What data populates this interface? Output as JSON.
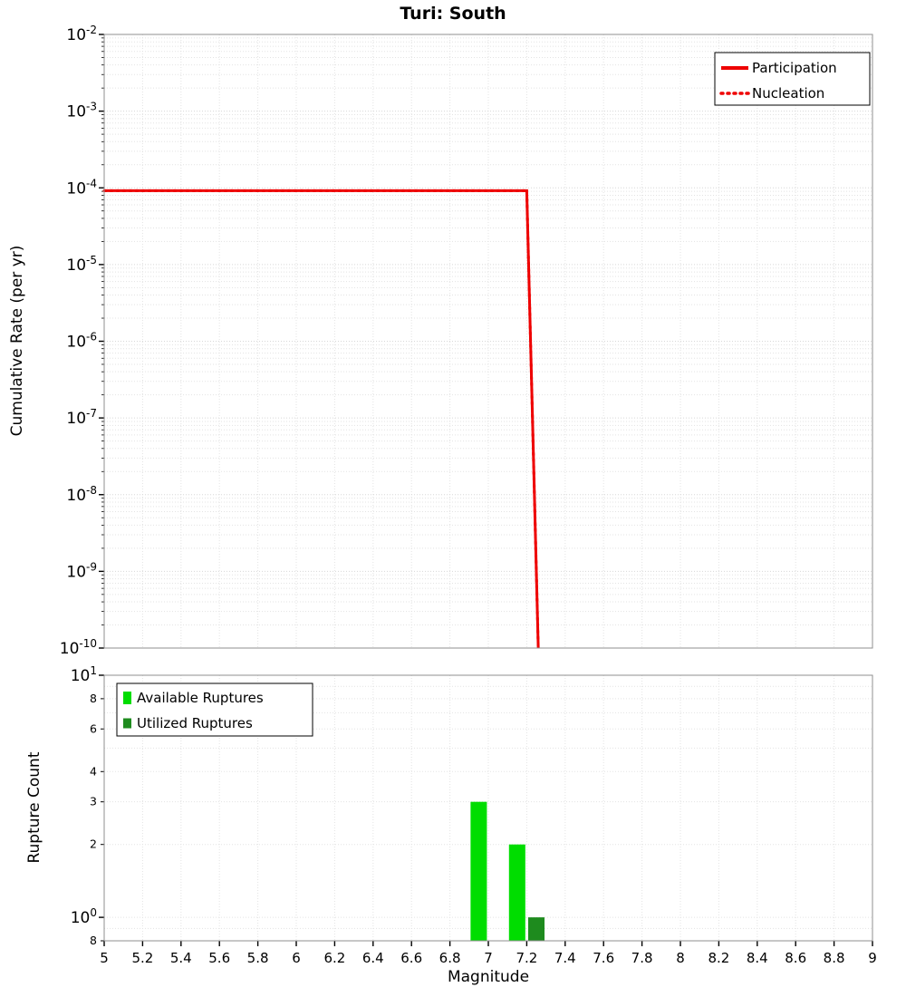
{
  "title": "Turi: South",
  "chart_data": [
    {
      "type": "line",
      "title": "Turi: South",
      "xlabel": "",
      "ylabel": "Cumulative Rate (per yr)",
      "x_range": [
        5,
        9
      ],
      "x_tick_step": 0.2,
      "y_scale": "log",
      "y_range": [
        1e-10,
        0.01
      ],
      "y_tick_exponents": [
        -2,
        -3,
        -4,
        -5,
        -6,
        -7,
        -8,
        -9,
        -10
      ],
      "grid": true,
      "legend_position": "top-right",
      "series": [
        {
          "name": "Participation",
          "color": "#ee0000",
          "line_style": "solid",
          "line_width": 3,
          "points": [
            [
              5,
              9.2e-05
            ],
            [
              7.2,
              9.2e-05
            ],
            [
              7.26,
              1e-10
            ]
          ]
        },
        {
          "name": "Nucleation",
          "color": "#ee0000",
          "line_style": "dotted",
          "line_width": 3,
          "points": [
            [
              5,
              9.2e-05
            ],
            [
              7.2,
              9.2e-05
            ],
            [
              7.26,
              1e-10
            ]
          ]
        }
      ]
    },
    {
      "type": "bar",
      "xlabel": "Magnitude",
      "ylabel": "Rupture Count",
      "x_range": [
        5,
        9
      ],
      "x_tick_step": 0.2,
      "x_tick_labels": [
        "5",
        "5.2",
        "5.4",
        "5.6",
        "5.8",
        "6",
        "6.2",
        "6.4",
        "6.6",
        "6.8",
        "7",
        "7.2",
        "7.4",
        "7.6",
        "7.8",
        "8",
        "8.2",
        "8.4",
        "8.6",
        "8.8",
        "9"
      ],
      "y_scale": "log",
      "y_range": [
        0.8,
        10
      ],
      "y_major_ticks": [
        {
          "value": 10,
          "base": "10",
          "exp": "1"
        },
        {
          "value": 1,
          "base": "10",
          "exp": "0"
        }
      ],
      "y_minor_ticks": [
        {
          "value": 8,
          "label": "8"
        },
        {
          "value": 6,
          "label": "6"
        },
        {
          "value": 4,
          "label": "4"
        },
        {
          "value": 3,
          "label": "3"
        },
        {
          "value": 2,
          "label": "2"
        },
        {
          "value": 0.8,
          "label": "8"
        }
      ],
      "legend_position": "top-left",
      "series": [
        {
          "name": "Available Ruptures",
          "color": "#00dd00",
          "bar_width": 0.085,
          "bars": [
            {
              "magnitude": 6.95,
              "count": 3
            },
            {
              "magnitude": 7.15,
              "count": 2
            }
          ]
        },
        {
          "name": "Utilized Ruptures",
          "color": "#1e8b1e",
          "bar_width": 0.085,
          "bars": [
            {
              "magnitude": 7.25,
              "count": 1
            }
          ]
        }
      ]
    }
  ],
  "colors": {
    "line_red": "#ee0000",
    "available_green": "#00dd00",
    "utilized_green": "#1e8b1e",
    "grid": "#e3e3e3",
    "frame": "#8f8f8f"
  }
}
